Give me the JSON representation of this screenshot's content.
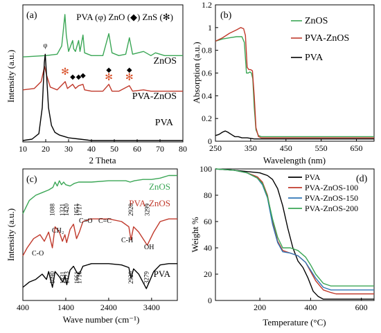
{
  "chart_data": [
    {
      "panel": "(a)",
      "type": "line",
      "xlabel": "2 Theta",
      "ylabel": "Intensity (a.u.)",
      "xlim": [
        10,
        80
      ],
      "xticks": [
        10,
        20,
        30,
        40,
        50,
        60,
        70,
        80
      ],
      "legend_title": "PVA (φ) ZnO (◆) ZnS (✻)",
      "series": [
        {
          "name": "ZnOS",
          "color": "#3aa655",
          "x": [
            10,
            20,
            25,
            27,
            28.4,
            29,
            30,
            31.8,
            32.2,
            33,
            34.4,
            35,
            36.3,
            37,
            40,
            45,
            47.6,
            49,
            52,
            55,
            56.6,
            58,
            62.8,
            66,
            68,
            72,
            77,
            80
          ],
          "y": [
            0.62,
            0.63,
            0.64,
            0.7,
            0.93,
            0.78,
            0.66,
            0.74,
            0.68,
            0.66,
            0.74,
            0.66,
            0.78,
            0.65,
            0.63,
            0.63,
            0.79,
            0.65,
            0.63,
            0.64,
            0.76,
            0.64,
            0.66,
            0.63,
            0.65,
            0.63,
            0.63,
            0.63
          ]
        },
        {
          "name": "PVA-ZnOS",
          "color": "#c0392b",
          "x": [
            10,
            15,
            18,
            19.5,
            20.5,
            22,
            25,
            28.5,
            29.5,
            31.8,
            33,
            34.4,
            36.3,
            37,
            40,
            45,
            47.6,
            49,
            52,
            56.6,
            58,
            62.8,
            66,
            72,
            80
          ],
          "y": [
            0.38,
            0.39,
            0.44,
            0.55,
            0.48,
            0.4,
            0.38,
            0.44,
            0.39,
            0.42,
            0.39,
            0.41,
            0.42,
            0.38,
            0.37,
            0.37,
            0.42,
            0.37,
            0.37,
            0.41,
            0.37,
            0.38,
            0.37,
            0.37,
            0.37
          ]
        },
        {
          "name": "PVA",
          "color": "#000000",
          "x": [
            10,
            14,
            17,
            18.5,
            19.4,
            19.8,
            20.4,
            21.2,
            22.5,
            24,
            26,
            28,
            30,
            35,
            40,
            45,
            60,
            80
          ],
          "y": [
            0.01,
            0.02,
            0.06,
            0.25,
            0.58,
            0.64,
            0.48,
            0.25,
            0.12,
            0.07,
            0.05,
            0.04,
            0.03,
            0.02,
            0.01,
            0.01,
            0.01,
            0.01
          ]
        }
      ],
      "annotations": [
        {
          "symbol": "φ",
          "x": 19.8,
          "y": 0.69
        },
        {
          "symbol": "✻",
          "x": 28.5,
          "y": 0.49
        },
        {
          "symbol": "◆",
          "x": 31.8,
          "y": 0.46
        },
        {
          "symbol": "◆",
          "x": 34.4,
          "y": 0.46
        },
        {
          "symbol": "◆",
          "x": 36.3,
          "y": 0.47
        },
        {
          "symbol": "◆",
          "x": 47.6,
          "y": 0.51
        },
        {
          "symbol": "✻",
          "x": 47.6,
          "y": 0.45
        },
        {
          "symbol": "◆",
          "x": 56.6,
          "y": 0.51
        },
        {
          "symbol": "✻",
          "x": 56.6,
          "y": 0.45
        }
      ],
      "label_text": [
        "ZnOS",
        "PVA-ZnOS",
        "PVA"
      ]
    },
    {
      "panel": "(b)",
      "type": "line",
      "xlabel": "Wavelength (nm)",
      "ylabel": "Absorption (a.u.)",
      "xlim": [
        250,
        700
      ],
      "ylim": [
        0,
        1.2
      ],
      "xticks": [
        250,
        350,
        450,
        550,
        650
      ],
      "yticks": [
        0,
        0.2,
        0.4,
        0.6,
        0.8,
        1,
        1.2
      ],
      "ytick_labels": [
        "0",
        "0.2",
        "0.4",
        "0.6",
        "0.8",
        "1",
        "1.2"
      ],
      "legend_placement": "top-right",
      "series": [
        {
          "name": "ZnOS",
          "color": "#3aa655",
          "x": [
            250,
            270,
            290,
            310,
            325,
            332,
            338,
            343,
            348,
            352,
            356,
            360,
            365,
            372,
            380,
            400,
            500,
            600,
            700
          ],
          "y": [
            0.88,
            0.9,
            0.91,
            0.92,
            0.92,
            0.87,
            0.6,
            0.6,
            0.61,
            0.6,
            0.55,
            0.3,
            0.1,
            0.05,
            0.04,
            0.04,
            0.04,
            0.04,
            0.04
          ]
        },
        {
          "name": "PVA-ZnOS",
          "color": "#c0392b",
          "x": [
            250,
            270,
            290,
            310,
            322,
            330,
            335,
            340,
            345,
            350,
            355,
            360,
            365,
            372,
            380,
            400,
            500,
            600,
            700
          ],
          "y": [
            0.88,
            0.91,
            0.95,
            0.98,
            1.0,
            0.99,
            0.93,
            0.65,
            0.63,
            0.63,
            0.62,
            0.4,
            0.12,
            0.04,
            0.03,
            0.03,
            0.03,
            0.03,
            0.03
          ]
        },
        {
          "name": "PVA",
          "color": "#000000",
          "x": [
            250,
            260,
            270,
            278,
            285,
            295,
            305,
            315,
            325,
            340,
            360,
            400,
            500,
            600,
            700
          ],
          "y": [
            0.05,
            0.06,
            0.08,
            0.09,
            0.08,
            0.06,
            0.04,
            0.04,
            0.03,
            0.03,
            0.02,
            0.02,
            0.02,
            0.02,
            0.02
          ]
        }
      ]
    },
    {
      "panel": "(c)",
      "type": "line",
      "xlabel": "Wave number (cm⁻¹)",
      "ylabel": "Intensity (a.u.)",
      "xlim": [
        400,
        4000
      ],
      "xticks": [
        400,
        1400,
        2400,
        3400
      ],
      "series": [
        {
          "name": "ZnOS",
          "color": "#3aa655",
          "x": [
            400,
            550,
            700,
            850,
            1000,
            1100,
            1150,
            1200,
            1250,
            1300,
            1350,
            1400,
            1500,
            1600,
            1700,
            2000,
            2400,
            2800,
            2900,
            3000,
            3200,
            3400,
            3600,
            3800,
            4000
          ],
          "y": [
            0.66,
            0.76,
            0.8,
            0.82,
            0.84,
            0.86,
            0.9,
            0.87,
            0.91,
            0.88,
            0.9,
            0.88,
            0.87,
            0.89,
            0.9,
            0.9,
            0.91,
            0.91,
            0.9,
            0.91,
            0.92,
            0.92,
            0.93,
            0.95,
            0.95
          ]
        },
        {
          "name": "PVA-ZnOS",
          "color": "#c0392b",
          "x": [
            400,
            500,
            650,
            800,
            900,
            1000,
            1088,
            1150,
            1250,
            1321,
            1380,
            1420,
            1500,
            1580,
            1651,
            1717,
            1800,
            2000,
            2400,
            2700,
            2870,
            2920,
            2980,
            3100,
            3299,
            3450,
            3600,
            3800,
            4000
          ],
          "y": [
            0.34,
            0.4,
            0.47,
            0.5,
            0.45,
            0.52,
            0.4,
            0.56,
            0.52,
            0.45,
            0.5,
            0.44,
            0.54,
            0.58,
            0.47,
            0.52,
            0.6,
            0.62,
            0.62,
            0.6,
            0.56,
            0.46,
            0.56,
            0.52,
            0.42,
            0.52,
            0.6,
            0.62,
            0.62
          ]
        },
        {
          "name": "PVA",
          "color": "#000000",
          "x": [
            400,
            550,
            700,
            850,
            950,
            1000,
            1090,
            1150,
            1250,
            1331,
            1380,
            1423,
            1500,
            1580,
            1661,
            1716,
            1800,
            2000,
            2400,
            2700,
            2870,
            2920,
            2980,
            3100,
            3279,
            3450,
            3600,
            3800,
            4000
          ],
          "y": [
            0.1,
            0.14,
            0.16,
            0.2,
            0.16,
            0.22,
            0.1,
            0.22,
            0.18,
            0.14,
            0.19,
            0.12,
            0.23,
            0.26,
            0.21,
            0.2,
            0.26,
            0.28,
            0.28,
            0.27,
            0.25,
            0.17,
            0.24,
            0.2,
            0.09,
            0.22,
            0.27,
            0.28,
            0.28
          ]
        }
      ],
      "peak_labels": [
        {
          "text": "1088",
          "x": 1088,
          "row": "PVA-ZnOS"
        },
        {
          "text": "1321",
          "x": 1321,
          "row": "PVA-ZnOS"
        },
        {
          "text": "1420",
          "x": 1420,
          "row": "PVA-ZnOS"
        },
        {
          "text": "1651",
          "x": 1651,
          "row": "PVA-ZnOS"
        },
        {
          "text": "1717",
          "x": 1717,
          "row": "PVA-ZnOS"
        },
        {
          "text": "2920",
          "x": 2920,
          "row": "PVA-ZnOS"
        },
        {
          "text": "3299",
          "x": 3299,
          "row": "PVA-ZnOS"
        },
        {
          "text": "1090",
          "x": 1090,
          "row": "PVA"
        },
        {
          "text": "1331",
          "x": 1331,
          "row": "PVA"
        },
        {
          "text": "1423",
          "x": 1423,
          "row": "PVA"
        },
        {
          "text": "1661",
          "x": 1661,
          "row": "PVA"
        },
        {
          "text": "1716",
          "x": 1716,
          "row": "PVA"
        },
        {
          "text": "2920",
          "x": 2920,
          "row": "PVA"
        },
        {
          "text": "3279",
          "x": 3279,
          "row": "PVA"
        }
      ],
      "band_labels": [
        "C-O",
        "CH₂",
        "C=O",
        "C=C",
        "C-H",
        "OH"
      ],
      "label_text": [
        "ZnOS",
        "PVA-ZnOS",
        "PVA"
      ]
    },
    {
      "panel": "(d)",
      "type": "line",
      "xlabel": "Temperature (°C)",
      "ylabel": "Weight %",
      "xlim": [
        25,
        650
      ],
      "ylim": [
        0,
        100
      ],
      "xticks": [
        200,
        400,
        600
      ],
      "yticks": [
        0,
        20,
        40,
        60,
        80,
        100
      ],
      "legend_placement": "top-right",
      "series": [
        {
          "name": "PVA",
          "color": "#000000",
          "x": [
            25,
            100,
            150,
            200,
            230,
            250,
            270,
            290,
            310,
            330,
            350,
            370,
            390,
            410,
            430,
            450,
            500,
            650
          ],
          "y": [
            100,
            99,
            98,
            97,
            95,
            92,
            85,
            72,
            55,
            40,
            30,
            25,
            17,
            7,
            3,
            1,
            1,
            1
          ]
        },
        {
          "name": "PVA-ZnOS-100",
          "color": "#c0392b",
          "x": [
            25,
            100,
            150,
            190,
            210,
            230,
            250,
            270,
            290,
            320,
            350,
            380,
            400,
            420,
            450,
            480,
            500,
            650
          ],
          "y": [
            100,
            99,
            97,
            94,
            90,
            80,
            60,
            45,
            38,
            36,
            34,
            29,
            22,
            15,
            8,
            6,
            5,
            5
          ]
        },
        {
          "name": "PVA-ZnOS-150",
          "color": "#2e75b6",
          "x": [
            25,
            100,
            150,
            190,
            210,
            230,
            250,
            270,
            290,
            320,
            350,
            380,
            400,
            420,
            450,
            480,
            500,
            650
          ],
          "y": [
            100,
            99,
            97,
            93,
            88,
            78,
            58,
            44,
            37,
            36,
            34,
            29,
            23,
            17,
            10,
            8,
            8,
            8
          ]
        },
        {
          "name": "PVA-ZnOS-200",
          "color": "#3aa655",
          "x": [
            25,
            100,
            150,
            190,
            210,
            230,
            250,
            270,
            290,
            320,
            350,
            380,
            400,
            420,
            450,
            480,
            500,
            650
          ],
          "y": [
            100,
            99,
            97,
            93,
            89,
            79,
            62,
            48,
            40,
            40,
            38,
            33,
            27,
            20,
            13,
            11,
            11,
            11
          ]
        }
      ]
    }
  ]
}
